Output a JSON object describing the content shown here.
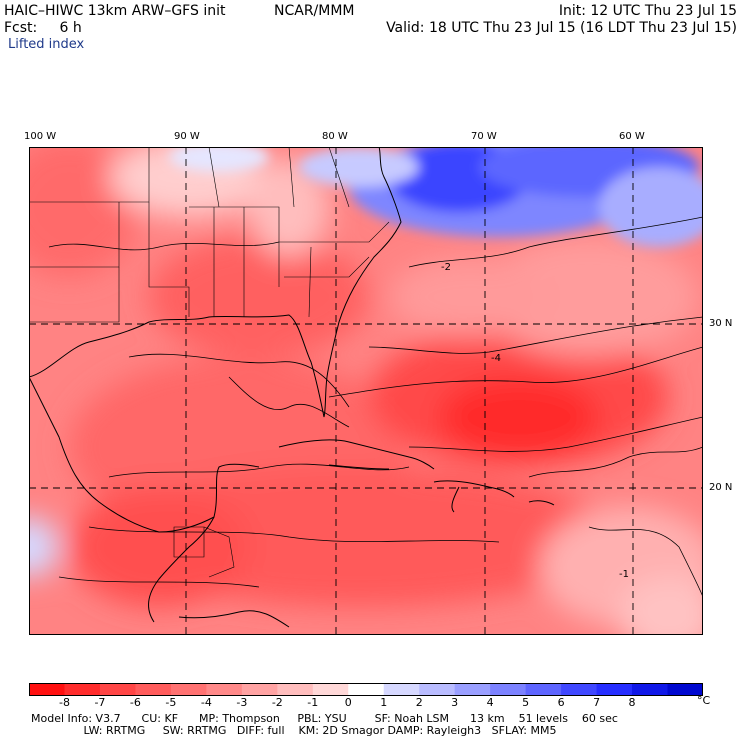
{
  "header": {
    "model": "HAIC–HIWC 13km ARW–GFS init",
    "org": "NCAR/MMM",
    "init": "Init: 12 UTC Thu 23 Jul 15",
    "fcst": "Fcst:     6 h",
    "valid": "Valid: 18 UTC Thu 23 Jul 15 (16 LDT Thu 23 Jul 15)",
    "field": "Lifted index"
  },
  "map": {
    "lon_labels": [
      "100 W",
      "90 W",
      "80 W",
      "70 W",
      "60 W"
    ],
    "lat_labels": [
      "30 N",
      "20 N"
    ],
    "contour_labels": [
      "-2",
      "-4",
      "-1"
    ]
  },
  "colorbar": {
    "unit": "°C",
    "ticks": [
      "-8",
      "-7",
      "-6",
      "-5",
      "-4",
      "-3",
      "-2",
      "-1",
      "0",
      "1",
      "2",
      "3",
      "4",
      "5",
      "6",
      "7",
      "8"
    ],
    "colors": [
      "#ff1010",
      "#ff2c2c",
      "#ff4646",
      "#ff5c5c",
      "#ff7272",
      "#ff8989",
      "#ffa3a3",
      "#ffbdbd",
      "#ffd8d8",
      "#ffffff",
      "#d6d8ff",
      "#b9bcff",
      "#9a9fff",
      "#7c82ff",
      "#5e65ff",
      "#4048ff",
      "#262eff",
      "#1018e8",
      "#0008d0"
    ]
  },
  "model_info": {
    "line1": "Model Info: V3.7      CU: KF      MP: Thompson     PBL: YSU        SF: Noah LSM      13 km    51 levels    60 sec",
    "line2": "               LW: RRTMG     SW: RRTMG   DIFF: full    KM: 2D Smagor DAMP: Rayleigh3   SFLAY: MM5"
  }
}
